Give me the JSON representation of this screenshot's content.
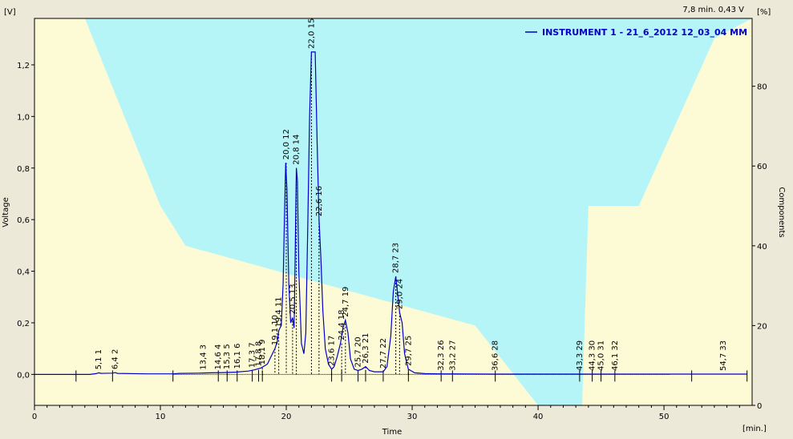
{
  "header": {
    "status_readout": "7,8 min.  0,43 V"
  },
  "axes": {
    "left_unit": "[V]",
    "right_unit": "[%]",
    "x_unit": "[min.]",
    "ylabel_left": "Voltage",
    "ylabel_right": "Components",
    "xlabel": "Time"
  },
  "colors": {
    "plot_background": "#fdfbd6",
    "gradient_fill": "#b6f5f7",
    "trace": "#0000c8",
    "legend_text": "#0000c8",
    "frame": "#000000"
  },
  "chart_data": {
    "type": "line",
    "legend_position": "top-right",
    "grid": false,
    "xlim": [
      0,
      57
    ],
    "ylim": [
      -0.12,
      1.38
    ],
    "y2lim": [
      0,
      97
    ],
    "x_ticks": [
      0,
      10,
      20,
      30,
      40,
      50
    ],
    "x_tick_labels": [
      "0",
      "10",
      "20",
      "30",
      "40",
      "50"
    ],
    "y_ticks": [
      0,
      0.2,
      0.4,
      0.6,
      0.8,
      1.0,
      1.2
    ],
    "y_tick_labels": [
      "0,0",
      "0,2",
      "0,4",
      "0,6",
      "0,8",
      "1,0",
      "1,2"
    ],
    "y2_ticks": [
      0,
      20,
      40,
      60,
      80
    ],
    "y2_tick_labels": [
      "0",
      "20",
      "40",
      "60",
      "80"
    ],
    "series": [
      {
        "name": "INSTRUMENT 1 - 21_6_2012 12_03_04 MM",
        "x": [
          0,
          3,
          3.3,
          4.4,
          4.9,
          5.1,
          5.3,
          6.2,
          6.4,
          6.6,
          9,
          11,
          11.5,
          13,
          14,
          15,
          16,
          17,
          17.5,
          18,
          18.5,
          18.8,
          19.1,
          19.3,
          19.4,
          19.6,
          19.75,
          19.85,
          19.95,
          20.05,
          20.2,
          20.35,
          20.5,
          20.62,
          20.72,
          20.8,
          20.88,
          21,
          21.2,
          21.4,
          21.55,
          21.7,
          21.85,
          22.0,
          22.15,
          22.3,
          22.45,
          22.6,
          22.75,
          22.9,
          23.1,
          23.35,
          23.6,
          23.8,
          24.05,
          24.3,
          24.5,
          24.7,
          24.9,
          25.1,
          25.4,
          25.7,
          26.0,
          26.3,
          26.6,
          27.0,
          27.4,
          27.7,
          28.0,
          28.3,
          28.5,
          28.7,
          28.85,
          29.0,
          29.2,
          29.4,
          29.7,
          30.2,
          31,
          32.3,
          33.2,
          36.6,
          40,
          43.3,
          44.3,
          45,
          46.1,
          50,
          54.7,
          56.6
        ],
        "y": [
          0,
          0,
          0,
          0,
          0.003,
          0.006,
          0.004,
          0.005,
          0.007,
          0.004,
          0.002,
          0.002,
          0.004,
          0.005,
          0.006,
          0.007,
          0.009,
          0.013,
          0.018,
          0.025,
          0.04,
          0.07,
          0.1,
          0.13,
          0.17,
          0.19,
          0.35,
          0.6,
          0.82,
          0.72,
          0.35,
          0.2,
          0.22,
          0.18,
          0.5,
          0.8,
          0.75,
          0.4,
          0.12,
          0.08,
          0.16,
          0.55,
          1.0,
          1.25,
          1.25,
          1.25,
          0.9,
          0.6,
          0.45,
          0.25,
          0.1,
          0.04,
          0.02,
          0.03,
          0.07,
          0.12,
          0.18,
          0.21,
          0.16,
          0.06,
          0.02,
          0.015,
          0.02,
          0.03,
          0.015,
          0.01,
          0.01,
          0.01,
          0.03,
          0.15,
          0.32,
          0.38,
          0.31,
          0.24,
          0.2,
          0.08,
          0.02,
          0.006,
          0.003,
          0.002,
          0.002,
          0.001,
          0.001,
          0.001,
          0.001,
          0.001,
          0.001,
          0.001,
          0.001,
          0.001
        ]
      }
    ],
    "gradient_profile": {
      "x": [
        0,
        4,
        10,
        12,
        35,
        40,
        43.5,
        44,
        48,
        54,
        57
      ],
      "y_percent": [
        97,
        97,
        50,
        40,
        20,
        0,
        0,
        50,
        50,
        92,
        97
      ]
    },
    "peaks": [
      {
        "num": "1",
        "rt": "5,1",
        "x": 5.1,
        "y": 0.006
      },
      {
        "num": "2",
        "rt": "6,4",
        "x": 6.4,
        "y": 0.007
      },
      {
        "num": "3",
        "rt": "13,4",
        "x": 13.4,
        "y": 0.005
      },
      {
        "num": "4",
        "rt": "14,6",
        "x": 14.6,
        "y": 0.006
      },
      {
        "num": "5",
        "rt": "15,3",
        "x": 15.3,
        "y": 0.007
      },
      {
        "num": "6",
        "rt": "16,1",
        "x": 16.1,
        "y": 0.009
      },
      {
        "num": "7",
        "rt": "17,3",
        "x": 17.3,
        "y": 0.013
      },
      {
        "num": "8",
        "rt": "17,8",
        "x": 17.8,
        "y": 0.018
      },
      {
        "num": "9",
        "rt": "18,1",
        "x": 18.1,
        "y": 0.025
      },
      {
        "num": "10",
        "rt": "19,1",
        "x": 19.1,
        "y": 0.1
      },
      {
        "num": "11",
        "rt": "19,4",
        "x": 19.4,
        "y": 0.17
      },
      {
        "num": "12",
        "rt": "20,0",
        "x": 20.0,
        "y": 0.82
      },
      {
        "num": "13",
        "rt": "20,5",
        "x": 20.5,
        "y": 0.22
      },
      {
        "num": "14",
        "rt": "20,8",
        "x": 20.8,
        "y": 0.8
      },
      {
        "num": "15",
        "rt": "22,0",
        "x": 22.0,
        "y": 1.25
      },
      {
        "num": "16",
        "rt": "22,6",
        "x": 22.6,
        "y": 0.6
      },
      {
        "num": "17",
        "rt": "23,6",
        "x": 23.6,
        "y": 0.02
      },
      {
        "num": "18",
        "rt": "24,4",
        "x": 24.4,
        "y": 0.12
      },
      {
        "num": "19",
        "rt": "24,7",
        "x": 24.7,
        "y": 0.21
      },
      {
        "num": "20",
        "rt": "25,7",
        "x": 25.7,
        "y": 0.015
      },
      {
        "num": "21",
        "rt": "26,3",
        "x": 26.3,
        "y": 0.03
      },
      {
        "num": "22",
        "rt": "27,7",
        "x": 27.7,
        "y": 0.01
      },
      {
        "num": "23",
        "rt": "28,7",
        "x": 28.7,
        "y": 0.38
      },
      {
        "num": "24",
        "rt": "29,0",
        "x": 29.0,
        "y": 0.24
      },
      {
        "num": "25",
        "rt": "29,7",
        "x": 29.7,
        "y": 0.02
      },
      {
        "num": "26",
        "rt": "32,3",
        "x": 32.3,
        "y": 0.002
      },
      {
        "num": "27",
        "rt": "33,2",
        "x": 33.2,
        "y": 0.002
      },
      {
        "num": "28",
        "rt": "36,6",
        "x": 36.6,
        "y": 0.001
      },
      {
        "num": "29",
        "rt": "43,3",
        "x": 43.3,
        "y": 0.001
      },
      {
        "num": "30",
        "rt": "44,3",
        "x": 44.3,
        "y": 0.001
      },
      {
        "num": "31",
        "rt": "45,0",
        "x": 45.0,
        "y": 0.001
      },
      {
        "num": "32",
        "rt": "46,1",
        "x": 46.1,
        "y": 0.001
      },
      {
        "num": "33",
        "rt": "54,7",
        "x": 54.7,
        "y": 0.001
      }
    ],
    "baseline_markers": [
      3.3,
      6.2,
      11,
      14.6,
      15.3,
      16.1,
      17.3,
      17.8,
      18.1,
      23.6,
      24.4,
      25.7,
      26.3,
      27.7,
      29.7,
      32.3,
      33.2,
      36.6,
      43.3,
      44.3,
      45.0,
      46.1,
      52.2,
      56.6
    ]
  }
}
